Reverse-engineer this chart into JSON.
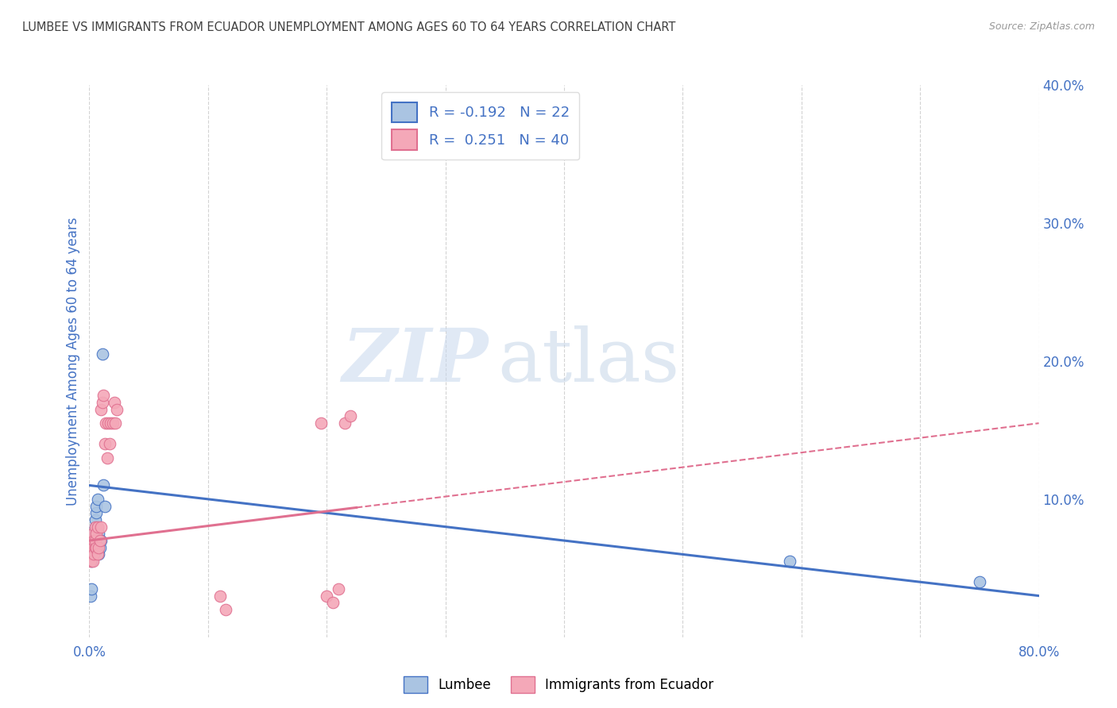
{
  "title": "LUMBEE VS IMMIGRANTS FROM ECUADOR UNEMPLOYMENT AMONG AGES 60 TO 64 YEARS CORRELATION CHART",
  "source": "Source: ZipAtlas.com",
  "ylabel": "Unemployment Among Ages 60 to 64 years",
  "xlim": [
    0.0,
    0.8
  ],
  "ylim": [
    0.0,
    0.4
  ],
  "xticks": [
    0.0,
    0.1,
    0.2,
    0.3,
    0.4,
    0.5,
    0.6,
    0.7,
    0.8
  ],
  "xticklabels": [
    "0.0%",
    "",
    "",
    "",
    "",
    "",
    "",
    "",
    "80.0%"
  ],
  "yticks_right": [
    0.1,
    0.2,
    0.3,
    0.4
  ],
  "yticklabels_right": [
    "10.0%",
    "20.0%",
    "30.0%",
    "40.0%"
  ],
  "lumbee_color": "#aac4e2",
  "ecuador_color": "#f4a8b8",
  "lumbee_line_color": "#4472c4",
  "ecuador_line_color": "#e07090",
  "legend_R_lumbee": "-0.192",
  "legend_N_lumbee": "22",
  "legend_R_ecuador": "0.251",
  "legend_N_ecuador": "40",
  "watermark_zip": "ZIP",
  "watermark_atlas": "atlas",
  "lumbee_x": [
    0.001,
    0.002,
    0.002,
    0.003,
    0.003,
    0.004,
    0.004,
    0.005,
    0.005,
    0.006,
    0.006,
    0.007,
    0.007,
    0.008,
    0.008,
    0.009,
    0.01,
    0.011,
    0.012,
    0.013,
    0.59,
    0.75
  ],
  "lumbee_y": [
    0.03,
    0.035,
    0.055,
    0.06,
    0.065,
    0.07,
    0.075,
    0.08,
    0.085,
    0.09,
    0.095,
    0.1,
    0.065,
    0.06,
    0.075,
    0.065,
    0.07,
    0.205,
    0.11,
    0.095,
    0.055,
    0.04
  ],
  "ecuador_x": [
    0.001,
    0.001,
    0.002,
    0.002,
    0.003,
    0.003,
    0.003,
    0.004,
    0.004,
    0.005,
    0.005,
    0.005,
    0.006,
    0.006,
    0.007,
    0.007,
    0.008,
    0.009,
    0.01,
    0.01,
    0.011,
    0.012,
    0.013,
    0.014,
    0.015,
    0.016,
    0.017,
    0.018,
    0.02,
    0.021,
    0.022,
    0.023,
    0.11,
    0.115,
    0.195,
    0.2,
    0.205,
    0.21,
    0.215,
    0.22
  ],
  "ecuador_y": [
    0.055,
    0.065,
    0.06,
    0.07,
    0.055,
    0.065,
    0.075,
    0.06,
    0.07,
    0.065,
    0.07,
    0.08,
    0.065,
    0.075,
    0.06,
    0.08,
    0.065,
    0.07,
    0.08,
    0.165,
    0.17,
    0.175,
    0.14,
    0.155,
    0.13,
    0.155,
    0.14,
    0.155,
    0.155,
    0.17,
    0.155,
    0.165,
    0.03,
    0.02,
    0.155,
    0.03,
    0.025,
    0.035,
    0.155,
    0.16
  ],
  "background_color": "#ffffff",
  "grid_color": "#c8c8c8",
  "title_color": "#404040",
  "tick_color": "#4472c4",
  "lumbee_label": "Lumbee",
  "ecuador_label": "Immigrants from Ecuador"
}
